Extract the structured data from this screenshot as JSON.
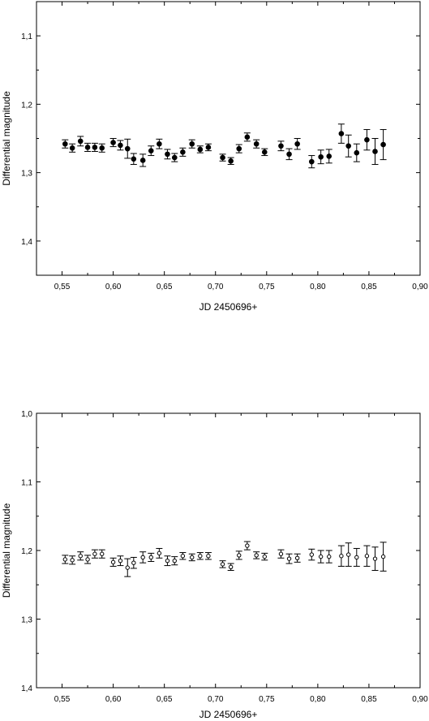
{
  "chart_data": [
    {
      "type": "scatter",
      "xlabel": "JD 2450696+",
      "ylabel": "Differential magnitude",
      "xlim": [
        0.525,
        0.9
      ],
      "ylim": [
        1.05,
        1.45
      ],
      "y_inverted": true,
      "xticks": [
        0.55,
        0.6,
        0.65,
        0.7,
        0.75,
        0.8,
        0.85,
        0.9
      ],
      "xtick_labels": [
        "0,55",
        "0,60",
        "0,65",
        "0,70",
        "0,75",
        "0,80",
        "0,85",
        "0,90"
      ],
      "yticks": [
        1.1,
        1.2,
        1.3,
        1.4
      ],
      "ytick_labels": [
        "1,1",
        "1,2",
        "1,3",
        "1,4"
      ],
      "marker": "filled-circle",
      "series": [
        {
          "x": [
            0.553,
            0.56,
            0.568,
            0.575,
            0.582,
            0.589,
            0.6,
            0.607,
            0.614,
            0.62,
            0.629,
            0.637,
            0.645,
            0.653,
            0.66,
            0.668,
            0.677,
            0.685,
            0.693,
            0.707,
            0.715,
            0.723,
            0.731,
            0.74,
            0.748,
            0.764,
            0.772,
            0.78,
            0.794,
            0.803,
            0.811,
            0.823,
            0.83,
            0.838,
            0.848,
            0.856,
            0.864
          ],
          "y": [
            1.258,
            1.264,
            1.254,
            1.263,
            1.263,
            1.264,
            1.256,
            1.26,
            1.265,
            1.28,
            1.282,
            1.268,
            1.258,
            1.273,
            1.278,
            1.27,
            1.258,
            1.266,
            1.263,
            1.278,
            1.283,
            1.265,
            1.248,
            1.258,
            1.27,
            1.261,
            1.273,
            1.258,
            1.284,
            1.277,
            1.276,
            1.243,
            1.261,
            1.271,
            1.252,
            1.269,
            1.259
          ],
          "err": [
            0.006,
            0.006,
            0.007,
            0.006,
            0.006,
            0.006,
            0.006,
            0.007,
            0.014,
            0.008,
            0.009,
            0.007,
            0.007,
            0.007,
            0.006,
            0.006,
            0.006,
            0.005,
            0.005,
            0.005,
            0.005,
            0.006,
            0.006,
            0.006,
            0.005,
            0.007,
            0.008,
            0.008,
            0.009,
            0.01,
            0.01,
            0.014,
            0.016,
            0.013,
            0.015,
            0.019,
            0.022
          ]
        }
      ]
    },
    {
      "type": "scatter",
      "xlabel": "JD 2450696+",
      "ylabel": "Differential magnitude",
      "xlim": [
        0.525,
        0.9
      ],
      "ylim": [
        1.0,
        1.4
      ],
      "y_inverted": true,
      "xticks": [
        0.55,
        0.6,
        0.65,
        0.7,
        0.75,
        0.8,
        0.85,
        0.9
      ],
      "xtick_labels": [
        "0,55",
        "0,60",
        "0,65",
        "0,70",
        "0,75",
        "0,80",
        "0,85",
        "0,90"
      ],
      "yticks": [
        1.0,
        1.1,
        1.2,
        1.3,
        1.4
      ],
      "ytick_labels": [
        "1,0",
        "1,1",
        "1,2",
        "1,3",
        "1,4"
      ],
      "marker": "open-circle",
      "series": [
        {
          "x": [
            0.553,
            0.56,
            0.568,
            0.575,
            0.582,
            0.589,
            0.6,
            0.607,
            0.614,
            0.62,
            0.629,
            0.637,
            0.645,
            0.653,
            0.66,
            0.668,
            0.677,
            0.685,
            0.693,
            0.707,
            0.715,
            0.723,
            0.731,
            0.74,
            0.748,
            0.764,
            0.772,
            0.78,
            0.794,
            0.803,
            0.811,
            0.823,
            0.83,
            0.838,
            0.848,
            0.856,
            0.864
          ],
          "y": [
            1.213,
            1.214,
            1.208,
            1.213,
            1.205,
            1.205,
            1.217,
            1.215,
            1.225,
            1.218,
            1.21,
            1.21,
            1.204,
            1.215,
            1.215,
            1.208,
            1.21,
            1.208,
            1.208,
            1.22,
            1.224,
            1.207,
            1.193,
            1.207,
            1.209,
            1.205,
            1.212,
            1.211,
            1.206,
            1.209,
            1.209,
            1.208,
            1.206,
            1.21,
            1.208,
            1.212,
            1.209
          ],
          "err": [
            0.006,
            0.006,
            0.006,
            0.006,
            0.006,
            0.006,
            0.006,
            0.007,
            0.013,
            0.008,
            0.008,
            0.006,
            0.007,
            0.007,
            0.006,
            0.005,
            0.005,
            0.005,
            0.005,
            0.005,
            0.005,
            0.006,
            0.006,
            0.005,
            0.005,
            0.006,
            0.007,
            0.006,
            0.008,
            0.009,
            0.009,
            0.015,
            0.017,
            0.013,
            0.015,
            0.017,
            0.021
          ]
        }
      ]
    }
  ]
}
